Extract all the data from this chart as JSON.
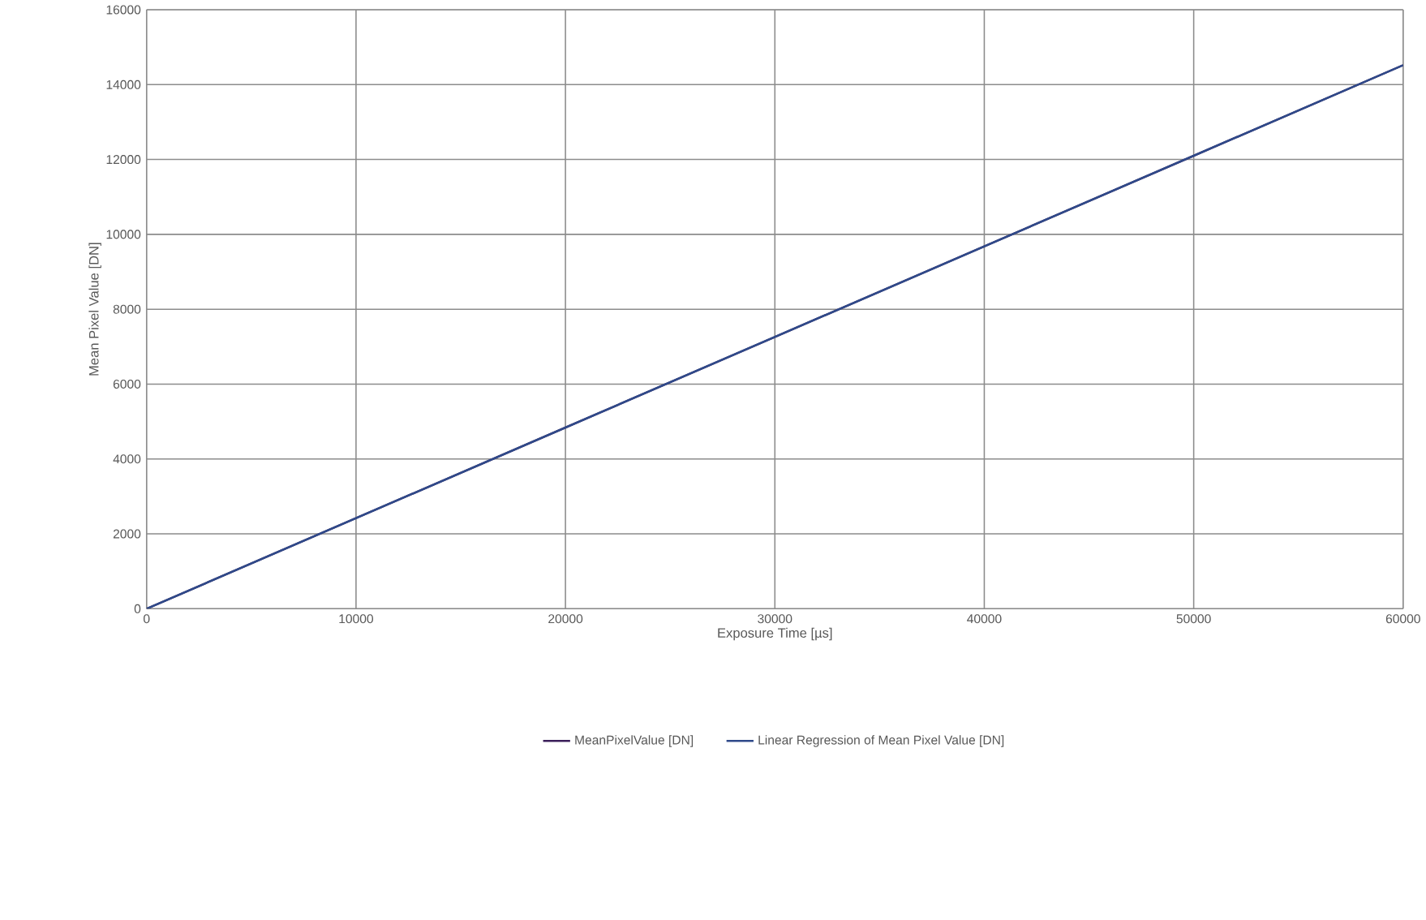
{
  "chart_data": {
    "type": "line",
    "xlabel": "Exposure Time [µs]",
    "ylabel": "Mean Pixel Value [DN]",
    "x": [
      0,
      10000,
      20000,
      30000,
      40000,
      50000,
      60000
    ],
    "series": [
      {
        "name": "MeanPixelValue [DN]",
        "color": "#3b1f5a",
        "values": [
          0,
          2420,
          4840,
          7260,
          9680,
          12100,
          14520
        ]
      },
      {
        "name": "Linear Regression of Mean Pixel Value [DN]",
        "color": "#2f4a8a",
        "x": [
          0,
          60000
        ],
        "values": [
          0,
          14520
        ]
      }
    ],
    "xlim": [
      0,
      60000
    ],
    "ylim": [
      0,
      16000
    ],
    "xticks": [
      0,
      10000,
      20000,
      30000,
      40000,
      50000,
      60000
    ],
    "yticks": [
      0,
      2000,
      4000,
      6000,
      8000,
      10000,
      12000,
      14000,
      16000
    ],
    "grid": true,
    "legend": "bottom",
    "marker": "none",
    "line_style": "solid"
  }
}
